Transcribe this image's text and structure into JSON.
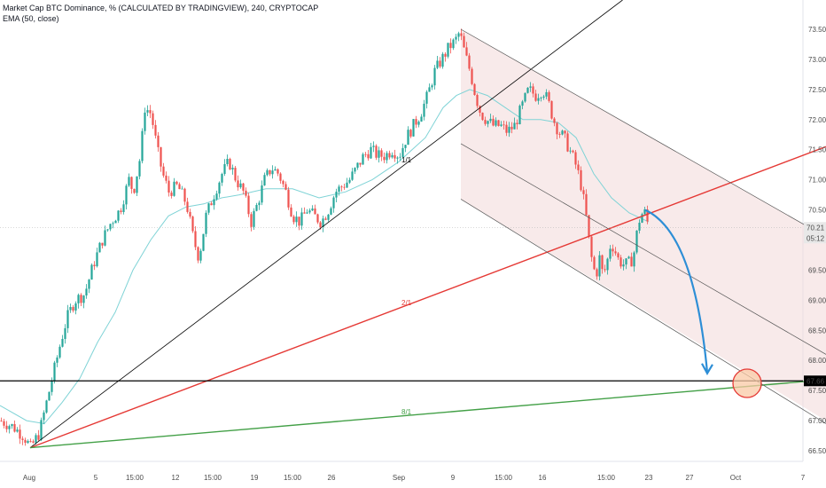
{
  "legend": {
    "line1": "Market Cap BTC Dominance, % (CALCULATED BY TRADINGVIEW), 240, CRYPTOCAP",
    "line2": "EMA (50, close)"
  },
  "price_badges": {
    "current": "70.21",
    "countdown": "05:12",
    "level": "67.66"
  },
  "colors": {
    "up": "#26a69a",
    "down": "#ef5350",
    "ema": "#7fd3d6",
    "fan_1x1": "#000000",
    "fan_2x1": "#e53935",
    "fan_8x1": "#43a047",
    "channel": "#555555",
    "channel_fill": "#f3d9d9",
    "arrow": "#2d8ed6",
    "target_circle": "#f9c9a6",
    "target_circle_stroke": "#e53935"
  },
  "chart_data": {
    "type": "candlestick",
    "y_axis": {
      "ticks": [
        "73.50",
        "73.00",
        "72.50",
        "72.00",
        "71.50",
        "71.00",
        "70.50",
        "70.00",
        "69.50",
        "69.00",
        "68.50",
        "68.00",
        "67.50",
        "67.00",
        "66.50"
      ],
      "range": [
        66.2,
        73.7
      ],
      "side": "right"
    },
    "x_axis": {
      "ticks": [
        "Aug",
        "5",
        "15:00",
        "12",
        "15:00",
        "19",
        "15:00",
        "26",
        "Sep",
        "9",
        "15:00",
        "16",
        "15:00",
        "23",
        "27",
        "Oct",
        "7"
      ]
    },
    "price_path": [
      [
        0,
        67.0
      ],
      [
        14,
        66.9
      ],
      [
        26,
        66.75
      ],
      [
        34,
        66.55
      ],
      [
        44,
        66.8
      ],
      [
        52,
        67.3
      ],
      [
        60,
        67.8
      ],
      [
        68,
        68.3
      ],
      [
        75,
        68.7
      ],
      [
        84,
        69.0
      ],
      [
        95,
        69.1
      ],
      [
        105,
        69.6
      ],
      [
        115,
        70.0
      ],
      [
        125,
        70.3
      ],
      [
        135,
        70.5
      ],
      [
        145,
        71.0
      ],
      [
        150,
        70.8
      ],
      [
        158,
        71.4
      ],
      [
        163,
        72.2
      ],
      [
        170,
        72.1
      ],
      [
        177,
        71.5
      ],
      [
        183,
        71.1
      ],
      [
        190,
        70.8
      ],
      [
        200,
        70.9
      ],
      [
        210,
        70.6
      ],
      [
        218,
        70.0
      ],
      [
        224,
        69.7
      ],
      [
        232,
        70.4
      ],
      [
        242,
        70.8
      ],
      [
        250,
        71.1
      ],
      [
        258,
        71.3
      ],
      [
        266,
        71.0
      ],
      [
        274,
        70.8
      ],
      [
        283,
        70.3
      ],
      [
        290,
        70.6
      ],
      [
        298,
        71.0
      ],
      [
        306,
        71.2
      ],
      [
        314,
        71.1
      ],
      [
        322,
        70.8
      ],
      [
        330,
        70.4
      ],
      [
        338,
        70.3
      ],
      [
        346,
        70.5
      ],
      [
        354,
        70.4
      ],
      [
        362,
        70.3
      ],
      [
        370,
        70.5
      ],
      [
        378,
        70.8
      ],
      [
        386,
        70.9
      ],
      [
        394,
        71.0
      ],
      [
        402,
        71.2
      ],
      [
        410,
        71.4
      ],
      [
        418,
        71.5
      ],
      [
        426,
        71.4
      ],
      [
        434,
        71.4
      ],
      [
        442,
        71.5
      ],
      [
        450,
        71.4
      ],
      [
        458,
        71.7
      ],
      [
        466,
        71.9
      ],
      [
        474,
        72.1
      ],
      [
        482,
        72.4
      ],
      [
        490,
        72.8
      ],
      [
        498,
        73.0
      ],
      [
        506,
        73.2
      ],
      [
        513,
        73.3
      ],
      [
        518,
        73.45
      ],
      [
        524,
        73.1
      ],
      [
        530,
        72.8
      ],
      [
        536,
        72.4
      ],
      [
        542,
        72.1
      ],
      [
        548,
        72.0
      ],
      [
        556,
        71.9
      ],
      [
        564,
        71.9
      ],
      [
        572,
        71.8
      ],
      [
        580,
        71.9
      ],
      [
        588,
        72.2
      ],
      [
        596,
        72.5
      ],
      [
        604,
        72.4
      ],
      [
        612,
        72.5
      ],
      [
        618,
        72.3
      ],
      [
        624,
        72.0
      ],
      [
        630,
        71.8
      ],
      [
        636,
        71.7
      ],
      [
        642,
        71.5
      ],
      [
        648,
        71.3
      ],
      [
        654,
        71.0
      ],
      [
        660,
        70.5
      ],
      [
        664,
        70.0
      ],
      [
        668,
        69.6
      ],
      [
        672,
        69.4
      ],
      [
        676,
        69.7
      ],
      [
        680,
        69.4
      ],
      [
        684,
        69.6
      ],
      [
        688,
        69.9
      ],
      [
        692,
        69.9
      ],
      [
        696,
        69.7
      ],
      [
        702,
        69.6
      ],
      [
        708,
        69.6
      ],
      [
        714,
        69.7
      ],
      [
        720,
        70.3
      ],
      [
        726,
        70.5
      ],
      [
        732,
        70.2
      ]
    ],
    "ema_path": [
      [
        0,
        67.25
      ],
      [
        30,
        67.0
      ],
      [
        50,
        66.95
      ],
      [
        70,
        67.3
      ],
      [
        90,
        67.7
      ],
      [
        110,
        68.3
      ],
      [
        130,
        68.8
      ],
      [
        150,
        69.5
      ],
      [
        170,
        70.0
      ],
      [
        190,
        70.4
      ],
      [
        210,
        70.55
      ],
      [
        230,
        70.6
      ],
      [
        250,
        70.7
      ],
      [
        270,
        70.75
      ],
      [
        300,
        70.85
      ],
      [
        330,
        70.85
      ],
      [
        360,
        70.7
      ],
      [
        390,
        70.8
      ],
      [
        420,
        71.0
      ],
      [
        450,
        71.3
      ],
      [
        480,
        71.7
      ],
      [
        500,
        72.2
      ],
      [
        515,
        72.4
      ],
      [
        530,
        72.5
      ],
      [
        550,
        72.4
      ],
      [
        570,
        72.2
      ],
      [
        590,
        72.0
      ],
      [
        610,
        72.0
      ],
      [
        630,
        71.95
      ],
      [
        650,
        71.7
      ],
      [
        670,
        71.1
      ],
      [
        690,
        70.7
      ],
      [
        710,
        70.45
      ],
      [
        732,
        70.3
      ]
    ],
    "drawings": {
      "fan_origin": [
        34,
        66.55
      ],
      "fan_lines": [
        {
          "label": "1/1",
          "through": [
            470,
            71.4
          ],
          "color": "fan_1x1"
        },
        {
          "label": "2/1",
          "through": [
            932,
            71.55
          ],
          "color": "fan_2x1"
        },
        {
          "label": "8/1",
          "through": [
            932,
            67.68
          ],
          "color": "fan_8x1"
        }
      ],
      "horizontal_level": 67.66,
      "channel": {
        "upper": [
          [
            520,
            73.5
          ],
          [
            932,
            70.05
          ]
        ],
        "middle": [
          [
            520,
            71.6
          ],
          [
            932,
            68.1
          ]
        ],
        "lower": [
          [
            520,
            70.68
          ],
          [
            932,
            66.95
          ]
        ]
      },
      "projection_arrow": {
        "from": [
          728,
          70.5
        ],
        "to": [
          798,
          67.8
        ]
      },
      "target_circle": {
        "center": [
          843,
          67.62
        ]
      }
    }
  }
}
